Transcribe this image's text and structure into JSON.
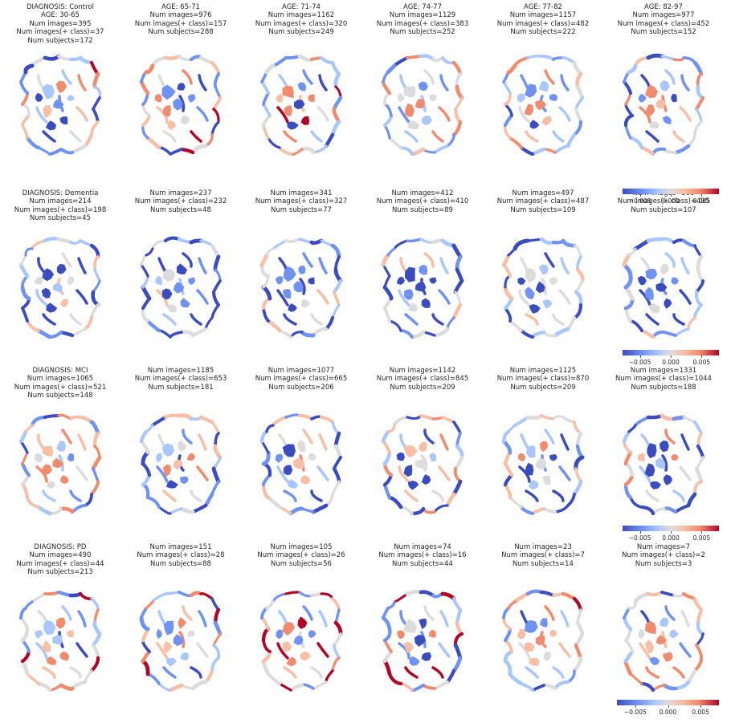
{
  "colormap": {
    "name": "coolwarm",
    "stops": [
      "#3b4cc0",
      "#6f92f3",
      "#aac7fd",
      "#dddcdc",
      "#f6bfa6",
      "#f08b6e",
      "#b40426"
    ],
    "tick_labels": [
      "−0.005",
      "0.000",
      "0.005"
    ]
  },
  "rows": [
    {
      "diagnosis": "DIAGNOSIS: Control",
      "cells": [
        {
          "lines": [
            "DIAGNOSIS: Control",
            "AGE: 30-65",
            "Num images=395",
            "Num images(+ class)=37",
            "Num subjects=172"
          ]
        },
        {
          "lines": [
            "AGE: 65-71",
            "Num images=976",
            "Num images(+ class)=157",
            "Num subjects=288"
          ]
        },
        {
          "lines": [
            "AGE: 71-74",
            "Num images=1162",
            "Num images(+ class)=320",
            "Num subjects=249"
          ]
        },
        {
          "lines": [
            "AGE: 74-77",
            "Num images=1129",
            "Num images(+ class)=383",
            "Num subjects=252"
          ]
        },
        {
          "lines": [
            "AGE: 77-82",
            "Num images=1157",
            "Num images(+ class)=482",
            "Num subjects=222"
          ]
        },
        {
          "lines": [
            "AGE: 82-97",
            "Num images=977",
            "Num images(+ class)=452",
            "Num subjects=152"
          ]
        }
      ]
    },
    {
      "diagnosis": "DIAGNOSIS: Dementia",
      "cells": [
        {
          "lines": [
            "DIAGNOSIS: Dementia",
            "Num images=214",
            "Num images(+ class)=198",
            "Num subjects=45"
          ]
        },
        {
          "lines": [
            "Num images=237",
            "Num images(+ class)=232",
            "Num subjects=48"
          ]
        },
        {
          "lines": [
            "Num images=341",
            "Num images(+ class)=327",
            "Num subjects=77"
          ]
        },
        {
          "lines": [
            "Num images=412",
            "Num images(+ class)=410",
            "Num subjects=89"
          ]
        },
        {
          "lines": [
            "Num images=497",
            "Num images(+ class)=487",
            "Num subjects=109"
          ]
        },
        {
          "lines": [
            "Num images=500",
            "Num images(+ class)=495",
            "Num subjects=107"
          ]
        }
      ]
    },
    {
      "diagnosis": "DIAGNOSIS: MCI",
      "cells": [
        {
          "lines": [
            "DIAGNOSIS: MCI",
            "Num images=1065",
            "Num images(+ class)=521",
            "Num subjects=148"
          ]
        },
        {
          "lines": [
            "Num images=1185",
            "Num images(+ class)=653",
            "Num subjects=181"
          ]
        },
        {
          "lines": [
            "Num images=1077",
            "Num images(+ class)=665",
            "Num subjects=206"
          ]
        },
        {
          "lines": [
            "Num images=1142",
            "Num images(+ class)=845",
            "Num subjects=209"
          ]
        },
        {
          "lines": [
            "Num images=1125",
            "Num images(+ class)=870",
            "Num subjects=209"
          ]
        },
        {
          "lines": [
            "Num images=1331",
            "Num images(+ class)=1044",
            "Num subjects=188"
          ]
        }
      ]
    },
    {
      "diagnosis": "DIAGNOSIS: PD",
      "cells": [
        {
          "lines": [
            "DIAGNOSIS: PD",
            "Num images=490",
            "Num images(+ class)=44",
            "Num subjects=213"
          ]
        },
        {
          "lines": [
            "Num images=151",
            "Num images(+ class)=28",
            "Num subjects=88"
          ]
        },
        {
          "lines": [
            "Num images=105",
            "Num images(+ class)=26",
            "Num subjects=56"
          ]
        },
        {
          "lines": [
            "Num images=74",
            "Num images(+ class)=16",
            "Num subjects=44"
          ]
        },
        {
          "lines": [
            "Num images=23",
            "Num images(+ class)=7",
            "Num subjects=14"
          ]
        },
        {
          "lines": [
            "Num images=7",
            "Num images(+ class)=2",
            "Num subjects=3"
          ]
        }
      ]
    }
  ]
}
